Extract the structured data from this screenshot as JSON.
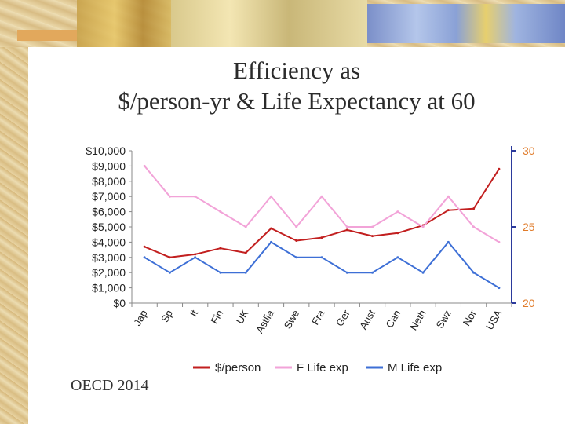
{
  "slide": {
    "title_line1": "Efficiency as",
    "title_line2": "$/person-yr & Life Expectancy at 60",
    "source": "OECD 2014"
  },
  "colors": {
    "dollars": "#c21f1f",
    "f_life": "#f2a3d8",
    "m_life": "#3d6fd6",
    "left_axis": "#888888",
    "right_axis": "#2b3a9c",
    "right_tick_text": "#e07b2a"
  },
  "chart_data": {
    "type": "line",
    "title": "",
    "categories": [
      "Jap",
      "Sp",
      "It",
      "Fin",
      "UK",
      "Astlia",
      "Swe",
      "Fra",
      "Ger",
      "Aust",
      "Can",
      "Neth",
      "Swz",
      "Nor",
      "USA"
    ],
    "y_left": {
      "label": "",
      "ylim": [
        0,
        10000
      ],
      "ticks": [
        "$0",
        "$1,000",
        "$2,000",
        "$3,000",
        "$4,000",
        "$5,000",
        "$6,000",
        "$7,000",
        "$8,000",
        "$9,000",
        "$10,000"
      ]
    },
    "y_right": {
      "label": "",
      "ylim": [
        20,
        30
      ],
      "ticks": [
        "20",
        "25",
        "30"
      ]
    },
    "series": [
      {
        "name": "$/person",
        "axis": "left",
        "values": [
          3700,
          3000,
          3200,
          3600,
          3300,
          4900,
          4100,
          4300,
          4800,
          4400,
          4600,
          5100,
          6100,
          6200,
          8800
        ]
      },
      {
        "name": "F Life exp",
        "axis": "right",
        "values": [
          29,
          27,
          27,
          26,
          25,
          27,
          25,
          27,
          25,
          25,
          26,
          25,
          27,
          25,
          24
        ]
      },
      {
        "name": "M Life exp",
        "axis": "right",
        "values": [
          23,
          22,
          23,
          22,
          22,
          24,
          23,
          23,
          22,
          22,
          23,
          22,
          24,
          22,
          21
        ]
      }
    ],
    "legend_position": "bottom",
    "grid": false
  }
}
